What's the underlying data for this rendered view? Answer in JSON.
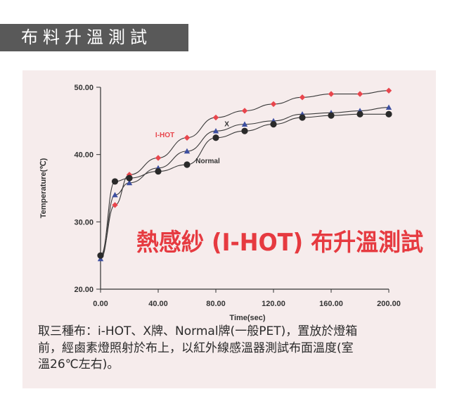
{
  "header": {
    "title": "布料升溫測試"
  },
  "chart_data": {
    "type": "line",
    "title": "熱感紗 (I-HOT) 布升溫測試",
    "xlabel": "Time(sec)",
    "ylabel": "Temperature(℃)",
    "xlim": [
      0,
      200
    ],
    "ylim": [
      20,
      50
    ],
    "x_ticks": [
      "0.00",
      "40.00",
      "80.00",
      "120.00",
      "160.00",
      "200.00"
    ],
    "y_ticks": [
      "20.00",
      "30.00",
      "40.00",
      "50.00"
    ],
    "grid": false,
    "legend": "inline labels",
    "series": [
      {
        "name": "I-HOT",
        "color": "#e8464d",
        "marker": "diamond",
        "x": [
          0,
          10,
          20,
          40,
          60,
          80,
          100,
          120,
          140,
          160,
          180,
          200
        ],
        "y": [
          25.0,
          32.5,
          37.0,
          39.5,
          42.5,
          45.5,
          46.5,
          47.5,
          48.5,
          49.0,
          49.0,
          49.5
        ]
      },
      {
        "name": "X",
        "color": "#3d4fa0",
        "marker": "triangle",
        "x": [
          0,
          10,
          20,
          40,
          60,
          80,
          100,
          120,
          140,
          160,
          180,
          200
        ],
        "y": [
          24.5,
          34.0,
          35.8,
          38.0,
          40.5,
          43.5,
          44.5,
          45.0,
          46.0,
          46.2,
          46.5,
          47.0
        ]
      },
      {
        "name": "Normal",
        "color": "#2a2a2a",
        "marker": "circle",
        "x": [
          0,
          10,
          20,
          40,
          60,
          80,
          100,
          120,
          140,
          160,
          180,
          200
        ],
        "y": [
          25.0,
          36.0,
          36.5,
          37.5,
          38.5,
          42.5,
          43.5,
          44.5,
          45.5,
          45.8,
          46.0,
          46.0
        ]
      }
    ]
  },
  "caption": {
    "line1": "取三種布：i-HOT、X牌、Normal牌(一般PET)，置放於燈箱",
    "line2": "前，經鹵素燈照射於布上，以紅外線感溫器測試布面溫度(室",
    "line3": "溫26℃左右)。"
  }
}
